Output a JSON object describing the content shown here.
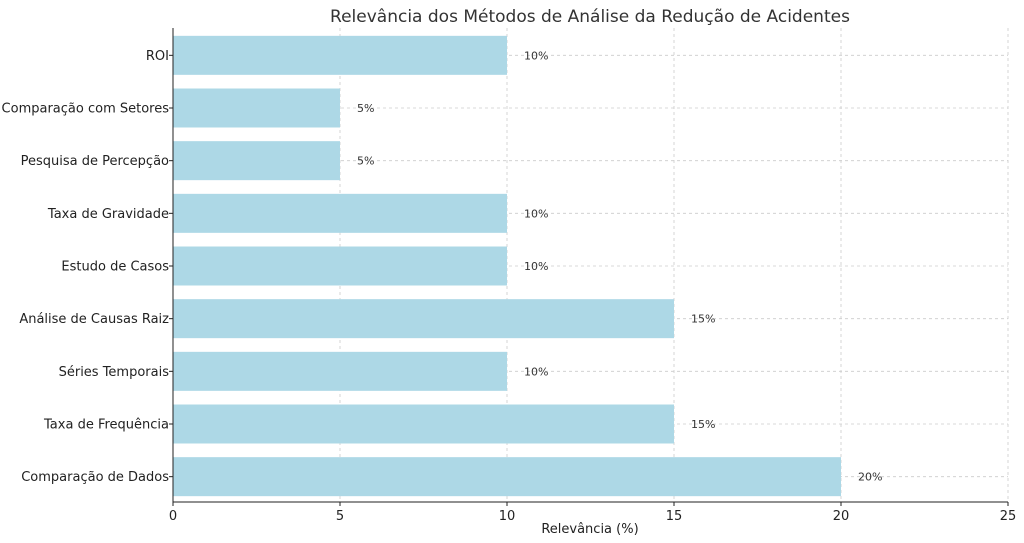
{
  "chart_data": {
    "type": "bar",
    "orientation": "horizontal",
    "title": "Relevância dos Métodos de Análise da Redução de Acidentes",
    "xlabel": "Relevância (%)",
    "ylabel": "",
    "categories": [
      "Comparação de Dados",
      "Taxa de Frequência",
      "Séries Temporais",
      "Análise de Causas Raiz",
      "Estudo de Casos",
      "Taxa de Gravidade",
      "Pesquisa de Percepção",
      "Comparação com Setores",
      "ROI"
    ],
    "values": [
      20,
      15,
      10,
      15,
      10,
      10,
      5,
      5,
      10
    ],
    "data_labels": [
      "20%",
      "15%",
      "10%",
      "15%",
      "10%",
      "10%",
      "5%",
      "5%",
      "10%"
    ],
    "xlim": [
      0,
      25
    ],
    "xticks": [
      0,
      5,
      10,
      15,
      20,
      25
    ],
    "grid": true,
    "bar_color": "#add8e6",
    "legend": "none"
  }
}
